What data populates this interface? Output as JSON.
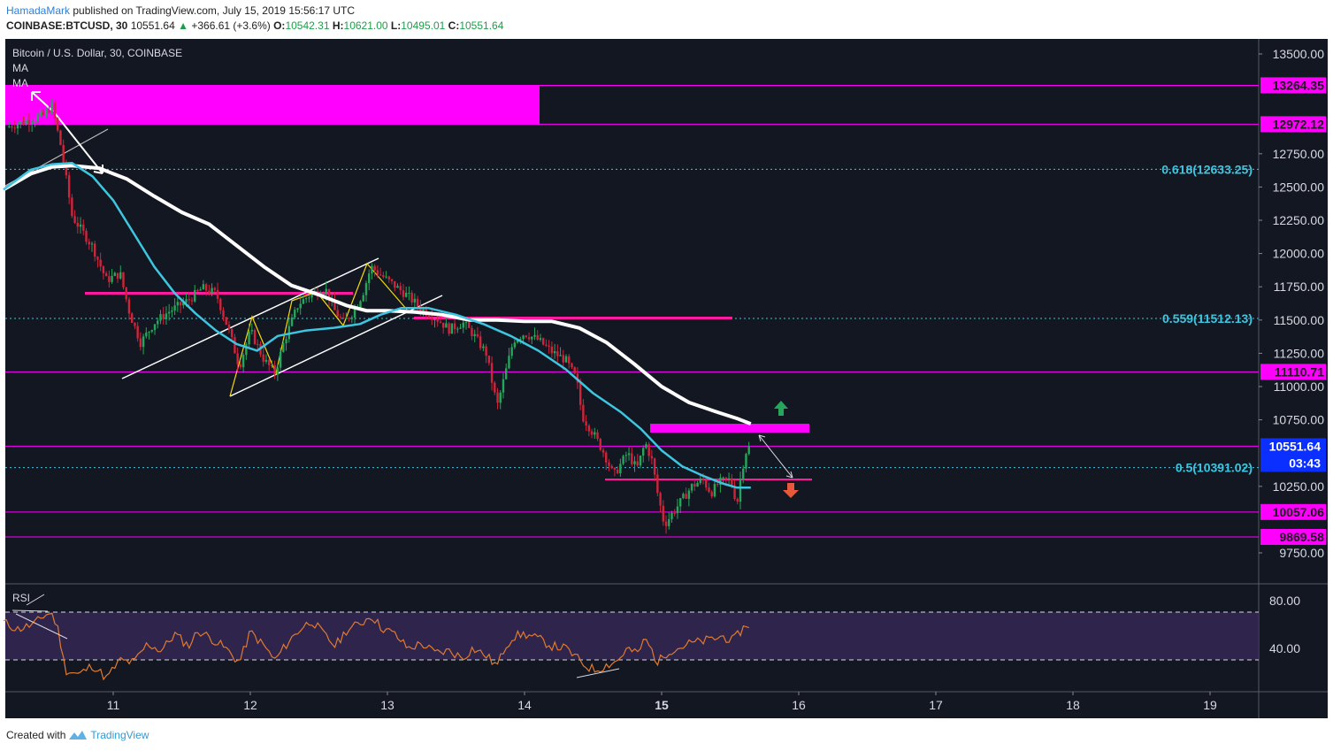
{
  "header": {
    "author": "HamadaMark",
    "published": "published on TradingView.com, July 15, 2019 15:56:17 UTC",
    "symbol": "COINBASE:BTCUSD, 30",
    "last": "10551.64",
    "change": "+366.61 (+3.6%)",
    "open_label": "O:",
    "open": "10542.31",
    "high_label": "H:",
    "high": "10621.00",
    "low_label": "L:",
    "low": "10495.01",
    "close_label": "C:",
    "close": "10551.64"
  },
  "legend": {
    "title": "Bitcoin / U.S. Dollar, 30, COINBASE",
    "ma1": "MA",
    "ma2": "MA"
  },
  "rsi_label": "RSI",
  "footer": {
    "created": "Created with",
    "brand": "TradingView"
  },
  "colors": {
    "background": "#131722",
    "bull": "#26a65b",
    "bear": "#d0243a",
    "magenta": "#ff00ff",
    "ma_fast": "#3ec6e0",
    "ma_slow": "#ffffff",
    "rsi_line": "#e07a30",
    "rsi_band": "#3a2a5a",
    "price_tag": "#0a2fff"
  },
  "chart_data": {
    "type": "candlestick",
    "title": "Bitcoin / U.S. Dollar, 30, COINBASE",
    "x_ticks": [
      "11",
      "12",
      "13",
      "14",
      "15",
      "16",
      "17",
      "18",
      "19"
    ],
    "y_ticks": [
      "13500.00",
      "12750.00",
      "12500.00",
      "12250.00",
      "12000.00",
      "11750.00",
      "11500.00",
      "11250.00",
      "11000.00",
      "10750.00",
      "10250.00",
      "9750.00"
    ],
    "ylim": [
      9500,
      13750
    ],
    "xlim": [
      10.2,
      19.4
    ],
    "price_waypoints": [
      [
        10.22,
        12950
      ],
      [
        10.5,
        13040
      ],
      [
        10.55,
        13120
      ],
      [
        10.62,
        12800
      ],
      [
        10.7,
        12280
      ],
      [
        10.85,
        12050
      ],
      [
        10.95,
        11800
      ],
      [
        11.05,
        11850
      ],
      [
        11.12,
        11550
      ],
      [
        11.2,
        11330
      ],
      [
        11.3,
        11480
      ],
      [
        11.4,
        11560
      ],
      [
        11.55,
        11650
      ],
      [
        11.65,
        11740
      ],
      [
        11.75,
        11700
      ],
      [
        11.85,
        11400
      ],
      [
        11.92,
        11150
      ],
      [
        12.0,
        11420
      ],
      [
        12.1,
        11200
      ],
      [
        12.18,
        11100
      ],
      [
        12.25,
        11350
      ],
      [
        12.35,
        11620
      ],
      [
        12.45,
        11700
      ],
      [
        12.55,
        11730
      ],
      [
        12.62,
        11560
      ],
      [
        12.68,
        11480
      ],
      [
        12.75,
        11560
      ],
      [
        12.82,
        11700
      ],
      [
        12.88,
        11900
      ],
      [
        12.95,
        11840
      ],
      [
        13.05,
        11760
      ],
      [
        13.15,
        11680
      ],
      [
        13.25,
        11580
      ],
      [
        13.35,
        11520
      ],
      [
        13.45,
        11430
      ],
      [
        13.55,
        11480
      ],
      [
        13.62,
        11400
      ],
      [
        13.72,
        11250
      ],
      [
        13.8,
        10850
      ],
      [
        13.86,
        11100
      ],
      [
        13.92,
        11350
      ],
      [
        14.0,
        11400
      ],
      [
        14.1,
        11350
      ],
      [
        14.2,
        11260
      ],
      [
        14.3,
        11200
      ],
      [
        14.38,
        11050
      ],
      [
        14.42,
        10780
      ],
      [
        14.5,
        10650
      ],
      [
        14.58,
        10500
      ],
      [
        14.65,
        10330
      ],
      [
        14.75,
        10500
      ],
      [
        14.82,
        10380
      ],
      [
        14.88,
        10580
      ],
      [
        14.93,
        10440
      ],
      [
        14.97,
        10200
      ],
      [
        15.02,
        9960
      ],
      [
        15.08,
        10050
      ],
      [
        15.15,
        10150
      ],
      [
        15.22,
        10250
      ],
      [
        15.3,
        10300
      ],
      [
        15.36,
        10200
      ],
      [
        15.42,
        10280
      ],
      [
        15.5,
        10300
      ],
      [
        15.55,
        10120
      ],
      [
        15.58,
        10350
      ],
      [
        15.62,
        10530
      ],
      [
        15.65,
        10552
      ]
    ],
    "ma_fast_waypoints": [
      [
        10.2,
        12480
      ],
      [
        10.4,
        12630
      ],
      [
        10.55,
        12670
      ],
      [
        10.7,
        12680
      ],
      [
        10.85,
        12580
      ],
      [
        11.0,
        12400
      ],
      [
        11.15,
        12150
      ],
      [
        11.3,
        11900
      ],
      [
        11.45,
        11700
      ],
      [
        11.6,
        11550
      ],
      [
        11.75,
        11420
      ],
      [
        11.9,
        11320
      ],
      [
        12.05,
        11270
      ],
      [
        12.2,
        11380
      ],
      [
        12.4,
        11420
      ],
      [
        12.6,
        11440
      ],
      [
        12.8,
        11470
      ],
      [
        12.95,
        11540
      ],
      [
        13.1,
        11590
      ],
      [
        13.3,
        11590
      ],
      [
        13.5,
        11540
      ],
      [
        13.7,
        11470
      ],
      [
        13.9,
        11380
      ],
      [
        14.1,
        11270
      ],
      [
        14.3,
        11130
      ],
      [
        14.5,
        10950
      ],
      [
        14.7,
        10810
      ],
      [
        14.85,
        10680
      ],
      [
        15.0,
        10520
      ],
      [
        15.15,
        10400
      ],
      [
        15.3,
        10330
      ],
      [
        15.45,
        10270
      ],
      [
        15.55,
        10240
      ],
      [
        15.65,
        10240
      ]
    ],
    "ma_slow_waypoints": [
      [
        10.2,
        12480
      ],
      [
        10.4,
        12600
      ],
      [
        10.55,
        12650
      ],
      [
        10.7,
        12660
      ],
      [
        10.9,
        12640
      ],
      [
        11.1,
        12560
      ],
      [
        11.3,
        12430
      ],
      [
        11.5,
        12310
      ],
      [
        11.7,
        12220
      ],
      [
        11.9,
        12060
      ],
      [
        12.1,
        11900
      ],
      [
        12.3,
        11760
      ],
      [
        12.5,
        11690
      ],
      [
        12.7,
        11610
      ],
      [
        12.85,
        11570
      ],
      [
        13.0,
        11570
      ],
      [
        13.2,
        11560
      ],
      [
        13.4,
        11540
      ],
      [
        13.6,
        11500
      ],
      [
        13.8,
        11500
      ],
      [
        14.0,
        11490
      ],
      [
        14.2,
        11490
      ],
      [
        14.4,
        11440
      ],
      [
        14.6,
        11330
      ],
      [
        14.8,
        11170
      ],
      [
        15.0,
        11000
      ],
      [
        15.2,
        10880
      ],
      [
        15.4,
        10810
      ],
      [
        15.55,
        10760
      ],
      [
        15.65,
        10720
      ]
    ],
    "rsi_waypoints": [
      [
        10.2,
        62
      ],
      [
        10.3,
        56
      ],
      [
        10.42,
        60
      ],
      [
        10.5,
        68
      ],
      [
        10.55,
        70
      ],
      [
        10.6,
        55
      ],
      [
        10.65,
        22
      ],
      [
        10.75,
        18
      ],
      [
        10.85,
        26
      ],
      [
        10.95,
        15
      ],
      [
        11.05,
        30
      ],
      [
        11.15,
        28
      ],
      [
        11.25,
        44
      ],
      [
        11.35,
        38
      ],
      [
        11.45,
        52
      ],
      [
        11.55,
        42
      ],
      [
        11.62,
        55
      ],
      [
        11.72,
        48
      ],
      [
        11.82,
        40
      ],
      [
        11.92,
        28
      ],
      [
        12.0,
        54
      ],
      [
        12.1,
        42
      ],
      [
        12.18,
        30
      ],
      [
        12.28,
        46
      ],
      [
        12.38,
        58
      ],
      [
        12.45,
        63
      ],
      [
        12.55,
        50
      ],
      [
        12.62,
        42
      ],
      [
        12.7,
        55
      ],
      [
        12.82,
        62
      ],
      [
        12.88,
        68
      ],
      [
        12.95,
        58
      ],
      [
        13.05,
        52
      ],
      [
        13.15,
        40
      ],
      [
        13.25,
        44
      ],
      [
        13.35,
        36
      ],
      [
        13.45,
        38
      ],
      [
        13.55,
        32
      ],
      [
        13.62,
        40
      ],
      [
        13.72,
        34
      ],
      [
        13.8,
        25
      ],
      [
        13.86,
        42
      ],
      [
        13.92,
        50
      ],
      [
        14.0,
        52
      ],
      [
        14.1,
        48
      ],
      [
        14.2,
        42
      ],
      [
        14.3,
        40
      ],
      [
        14.4,
        30
      ],
      [
        14.45,
        25
      ],
      [
        14.52,
        22
      ],
      [
        14.6,
        26
      ],
      [
        14.68,
        30
      ],
      [
        14.75,
        40
      ],
      [
        14.82,
        35
      ],
      [
        14.88,
        48
      ],
      [
        14.93,
        38
      ],
      [
        14.97,
        28
      ],
      [
        15.05,
        38
      ],
      [
        15.12,
        40
      ],
      [
        15.2,
        44
      ],
      [
        15.3,
        46
      ],
      [
        15.38,
        48
      ],
      [
        15.45,
        50
      ],
      [
        15.52,
        46
      ],
      [
        15.58,
        55
      ],
      [
        15.62,
        60
      ],
      [
        15.65,
        60
      ]
    ],
    "rsi_ticks": [
      "80.00",
      "40.00"
    ],
    "rsi_ylim": [
      0,
      100
    ],
    "horizontal_levels": [
      {
        "value": 13264.35,
        "label": "13264.35"
      },
      {
        "value": 12972.12,
        "label": "12972.12"
      },
      {
        "value": 11110.71,
        "label": "11110.71"
      },
      {
        "value": 10057.06,
        "label": "10057.06"
      },
      {
        "value": 9869.58,
        "label": "9869.58"
      }
    ],
    "fib_levels": [
      {
        "value": 12633.25,
        "label": "0.618(12633.25)"
      },
      {
        "value": 11512.13,
        "label": "0.559(11512.13)"
      },
      {
        "value": 10391.02,
        "label": "0.5(10391.02)"
      }
    ],
    "current_price": {
      "value": 10551.64,
      "label": "10551.64",
      "timer": "03:43"
    }
  }
}
